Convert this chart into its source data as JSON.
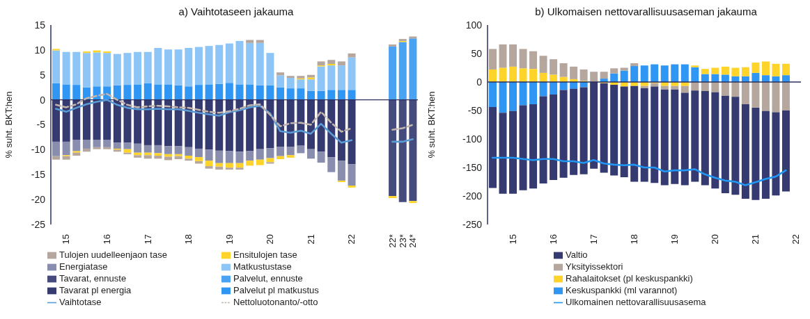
{
  "chart_data": [
    {
      "type": "bar",
      "title": "a) Vaihtotaseen jakauma",
      "ylabel": "% suht. BKT:hen",
      "stacked": true,
      "legend": "bottom",
      "categories": [
        null,
        "15",
        null,
        null,
        null,
        "16",
        null,
        null,
        null,
        "17",
        null,
        null,
        null,
        "18",
        null,
        null,
        null,
        "19",
        null,
        null,
        null,
        "20",
        null,
        null,
        null,
        "21",
        null,
        null,
        null,
        "22",
        null,
        null,
        null,
        "22*",
        "23*",
        "24*"
      ],
      "ylim": [
        -25,
        15
      ],
      "yticks": [
        -25,
        -20,
        -15,
        -10,
        -5,
        0,
        5,
        10,
        15
      ],
      "series": [
        {
          "name": "Palvelut pl matkustus",
          "color": "#2f96f3",
          "values": [
            3.3,
            3.1,
            3.0,
            2.5,
            2.7,
            2.7,
            2.9,
            3.0,
            3.1,
            3.3,
            3.1,
            3.1,
            2.9,
            2.7,
            3.0,
            3.1,
            3.2,
            3.4,
            3.1,
            3.1,
            2.9,
            2.9,
            2.5,
            2.3,
            2.3,
            1.8,
            1.8,
            2.0,
            2.0,
            2.0,
            null,
            null,
            null,
            null,
            null,
            null
          ]
        },
        {
          "name": "Tavarat pl energia",
          "color": "#353a70",
          "values": [
            -8.4,
            -8.4,
            -8.0,
            -8.0,
            -8.0,
            -8.0,
            -8.6,
            -8.6,
            -8.8,
            -9.1,
            -9.1,
            -9.3,
            -9.3,
            -9.5,
            -9.8,
            -10.0,
            -10.2,
            -10.3,
            -10.4,
            -10.3,
            -9.9,
            -9.7,
            -9.4,
            -9.4,
            -9.2,
            -9.9,
            -10.4,
            -11.5,
            -12.2,
            -12.9,
            null,
            null,
            null,
            null,
            null,
            null
          ]
        },
        {
          "name": "Palvelut, ennuste",
          "color": "#4aa3f2",
          "values": [
            null,
            null,
            null,
            null,
            null,
            null,
            null,
            null,
            null,
            null,
            null,
            null,
            null,
            null,
            null,
            null,
            null,
            null,
            null,
            null,
            null,
            null,
            null,
            null,
            null,
            null,
            null,
            null,
            null,
            null,
            null,
            null,
            null,
            10.7,
            11.6,
            12.3
          ]
        },
        {
          "name": "Tavarat, ennuste",
          "color": "#464b7e",
          "values": [
            null,
            null,
            null,
            null,
            null,
            null,
            null,
            null,
            null,
            null,
            null,
            null,
            null,
            null,
            null,
            null,
            null,
            null,
            null,
            null,
            null,
            null,
            null,
            null,
            null,
            null,
            null,
            null,
            null,
            null,
            null,
            null,
            null,
            -19.3,
            -20.5,
            -20.3
          ]
        },
        {
          "name": "Matkustustase",
          "color": "#8ec5f7",
          "values": [
            6.6,
            6.5,
            6.6,
            6.9,
            6.8,
            6.7,
            6.3,
            6.4,
            6.5,
            6.3,
            7.3,
            7.0,
            7.2,
            7.7,
            7.6,
            7.7,
            7.8,
            7.9,
            8.7,
            8.3,
            8.5,
            6.5,
            2.4,
            2.1,
            1.8,
            2.3,
            4.9,
            4.9,
            4.9,
            6.5,
            null,
            null,
            null,
            null,
            null,
            null
          ]
        },
        {
          "name": "Energiatase",
          "color": "#8a8eae",
          "values": [
            -2.9,
            -2.7,
            -2.3,
            -1.8,
            -1.5,
            -1.5,
            -1.2,
            -1.3,
            -1.8,
            -1.5,
            -1.6,
            -1.6,
            -1.6,
            -1.7,
            -1.7,
            -2.2,
            -2.5,
            -2.4,
            -2.3,
            -1.9,
            -2.1,
            -2.0,
            -1.9,
            -1.7,
            -1.5,
            -1.9,
            -2.2,
            -3.0,
            -4.0,
            -4.3,
            null,
            null,
            null,
            null,
            null,
            null
          ]
        },
        {
          "name": "Ensitulojen tase",
          "color": "#ffd42a",
          "values": [
            0.3,
            -0.2,
            -0.3,
            0.3,
            0.4,
            0.3,
            -0.2,
            -0.7,
            -0.5,
            -0.5,
            -0.5,
            -0.5,
            -0.4,
            -0.6,
            -0.8,
            -1.1,
            -0.7,
            -0.9,
            -0.9,
            -1.0,
            -1.1,
            -0.8,
            -0.6,
            -0.5,
            0.2,
            0.4,
            0.2,
            0.3,
            -0.3,
            -0.4,
            null,
            null,
            null,
            -0.4,
            0.2,
            -0.4
          ]
        },
        {
          "name": "Tulojen uudelleenjaon tase",
          "color": "#b5a79e",
          "values": [
            -0.7,
            -0.7,
            -0.6,
            -0.6,
            -0.4,
            -0.4,
            -0.4,
            -0.3,
            -0.5,
            -0.7,
            -0.6,
            -0.7,
            -0.6,
            -0.4,
            -0.5,
            -0.5,
            -0.6,
            -0.4,
            -0.4,
            0.6,
            0.6,
            -0.3,
            0.6,
            0.4,
            0.5,
            0.5,
            0.8,
            0.8,
            0.8,
            0.8,
            null,
            null,
            null,
            0.4,
            0.4,
            0.4
          ]
        },
        {
          "name": "Vaihtotase",
          "type": "line",
          "color": "#5b9bd5",
          "values": [
            -1.8,
            -2.4,
            -1.6,
            -0.9,
            -0.4,
            0.0,
            -1.0,
            -1.6,
            -1.9,
            -1.9,
            -1.8,
            -1.9,
            -1.9,
            -2.2,
            -2.6,
            -2.9,
            -3.2,
            -2.5,
            -2.1,
            -1.5,
            -1.2,
            -2.7,
            -6.3,
            -6.6,
            -6.2,
            -6.8,
            -4.8,
            -6.8,
            -8.6,
            -8.1,
            null,
            null,
            null,
            -8.4,
            -8.4,
            -7.9
          ]
        },
        {
          "name": "Nettoluotonanto/-otto",
          "type": "line",
          "line_style": "dashed",
          "color": "#c0b4ac",
          "values": [
            -1.0,
            -1.5,
            -0.9,
            0.3,
            0.8,
            1.2,
            0.0,
            -1.0,
            -1.5,
            -1.3,
            -1.2,
            -1.3,
            -1.5,
            -1.6,
            -2.0,
            -2.4,
            -2.6,
            -2.3,
            -1.8,
            -1.1,
            -0.9,
            -3.0,
            -5.3,
            -4.7,
            -4.6,
            -5.0,
            -2.4,
            -4.6,
            -6.4,
            -5.7,
            null,
            null,
            null,
            -6.0,
            -5.7,
            -5.0
          ]
        }
      ]
    },
    {
      "type": "bar",
      "title": "b) Ulkomaisen nettovarallisuusaseman jakauma",
      "ylabel": "% suht. BKT:hen",
      "stacked": true,
      "legend": "bottom",
      "categories": [
        null,
        null,
        "15",
        null,
        null,
        null,
        "16",
        null,
        null,
        null,
        "17",
        null,
        null,
        null,
        "18",
        null,
        null,
        null,
        "19",
        null,
        null,
        null,
        "20",
        null,
        null,
        null,
        "21",
        null,
        null,
        null,
        "22"
      ],
      "ylim": [
        -250,
        100
      ],
      "yticks": [
        -250,
        -200,
        -150,
        -100,
        -50,
        0,
        50,
        100
      ],
      "series": [
        {
          "name": "Keskuspankki (ml varannot)",
          "color": "#2f96f3",
          "values": [
            -44,
            -54,
            -51,
            -41,
            -39,
            -25,
            -22,
            -14,
            -12,
            -9,
            null,
            6,
            15,
            20,
            28,
            29,
            31,
            29,
            31,
            31,
            26,
            14,
            14,
            13,
            10,
            10,
            16,
            12,
            10,
            12,
            null
          ]
        },
        {
          "name": "Rahalaitokset (pl keskuspankki)",
          "color": "#ffd42a",
          "values": [
            22,
            25,
            27,
            24,
            23,
            16,
            13,
            9,
            5,
            2,
            null,
            -2,
            -5,
            -8,
            -7,
            -7,
            -2,
            -7,
            -7,
            -7,
            3,
            9,
            11,
            14,
            15,
            16,
            18,
            24,
            22,
            20,
            null
          ]
        },
        {
          "name": "Yksityissektori",
          "color": "#b5a79e",
          "values": [
            36,
            41,
            39,
            34,
            31,
            30,
            27,
            24,
            22,
            20,
            18,
            12,
            9,
            5,
            5,
            -4,
            -6,
            -6,
            -6,
            -12,
            -15,
            -16,
            -18,
            -24,
            -26,
            -39,
            -45,
            -51,
            -53,
            -50,
            null
          ]
        },
        {
          "name": "Valtio",
          "color": "#353a70",
          "values": [
            -142,
            -142,
            -145,
            -149,
            -148,
            -153,
            -150,
            -154,
            -151,
            -153,
            -152,
            -157,
            -159,
            -159,
            -168,
            -164,
            -169,
            -168,
            -166,
            -162,
            -160,
            -165,
            -169,
            -171,
            -172,
            -166,
            -162,
            -154,
            -146,
            -142,
            null
          ]
        },
        {
          "name": "Ulkomainen nettovarallisuusasema",
          "type": "line",
          "color": "#2196f3",
          "values": [
            -133,
            -133,
            -133,
            -135,
            -137,
            -135,
            -135,
            -139,
            -139,
            -142,
            -137,
            -143,
            -145,
            -146,
            -145,
            -150,
            -150,
            -157,
            -155,
            -155,
            -153,
            -162,
            -168,
            -173,
            -175,
            -181,
            -176,
            -170,
            -166,
            -155,
            null
          ]
        }
      ]
    }
  ]
}
